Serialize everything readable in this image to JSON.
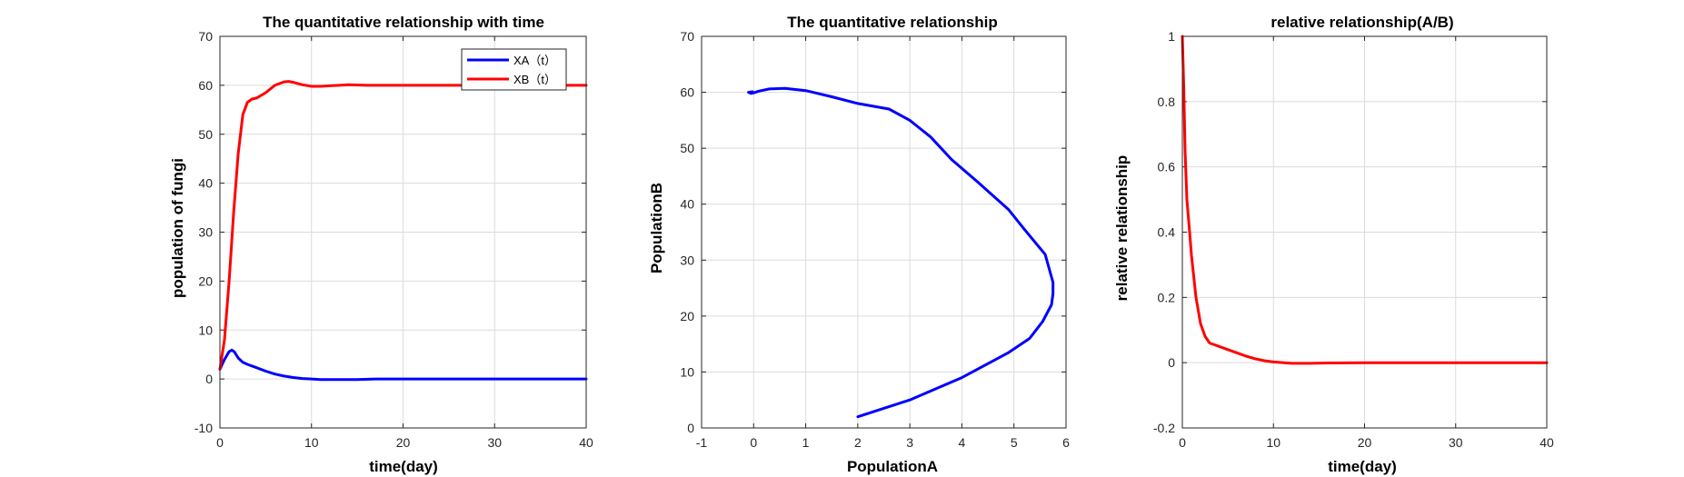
{
  "chart_data": [
    {
      "type": "line",
      "title": "The quantitative relationship with time",
      "xlabel": "time(day)",
      "ylabel": "population of fungi",
      "xlim": [
        0,
        40
      ],
      "ylim": [
        -10,
        70
      ],
      "xticks": [
        0,
        10,
        20,
        30,
        40
      ],
      "yticks": [
        -10,
        0,
        10,
        20,
        30,
        40,
        50,
        60,
        70
      ],
      "grid": true,
      "legend": "top-right",
      "series": [
        {
          "name": "XA（t）",
          "color": "#0000ff",
          "x": [
            0,
            0.5,
            1,
            1.3,
            1.6,
            2,
            2.5,
            3,
            4,
            5,
            6,
            7,
            8,
            9,
            10,
            11,
            12,
            13,
            14,
            15,
            17,
            20,
            25,
            30,
            35,
            40
          ],
          "y": [
            2,
            4,
            5.6,
            5.9,
            5.5,
            4.3,
            3.4,
            3.0,
            2.3,
            1.6,
            1.0,
            0.6,
            0.3,
            0.1,
            0.0,
            -0.1,
            -0.1,
            -0.1,
            -0.1,
            -0.1,
            0,
            0,
            0,
            0,
            0,
            0
          ]
        },
        {
          "name": "XB（t）",
          "color": "#ff0000",
          "x": [
            0,
            0.5,
            1,
            1.5,
            2,
            2.5,
            3,
            3.5,
            4,
            5,
            6,
            7,
            7.5,
            8,
            9,
            10,
            11,
            12,
            13,
            14,
            16,
            20,
            25,
            30,
            35,
            40
          ],
          "y": [
            2,
            8,
            20,
            34,
            46,
            54,
            56.5,
            57.2,
            57.4,
            58.5,
            60,
            60.7,
            60.8,
            60.6,
            60.1,
            59.8,
            59.8,
            59.9,
            60.0,
            60.1,
            60.0,
            60,
            60,
            60,
            60,
            60
          ]
        }
      ]
    },
    {
      "type": "line",
      "title": "The quantitative relationship",
      "xlabel": "PopulationA",
      "ylabel": "PopulationB",
      "xlim": [
        -1,
        6
      ],
      "ylim": [
        0,
        70
      ],
      "xticks": [
        -1,
        0,
        1,
        2,
        3,
        4,
        5,
        6
      ],
      "yticks": [
        0,
        10,
        20,
        30,
        40,
        50,
        60,
        70
      ],
      "grid": true,
      "series": [
        {
          "color": "#0000ff",
          "x": [
            2,
            2.5,
            3,
            3.5,
            4,
            4.4,
            4.9,
            5.3,
            5.55,
            5.72,
            5.75,
            5.75,
            5.6,
            5.2,
            4.9,
            4.3,
            3.8,
            3.4,
            3.0,
            2.6,
            2.0,
            1.5,
            1.0,
            0.6,
            0.3,
            0.1,
            0.0,
            -0.05,
            -0.1,
            -0.02
          ],
          "y": [
            2,
            3.5,
            5,
            7,
            9,
            11,
            13.5,
            16,
            19,
            22,
            24,
            26,
            31,
            35.5,
            39,
            44,
            48,
            52,
            55,
            57,
            58,
            59.2,
            60.3,
            60.7,
            60.6,
            60.2,
            59.9,
            59.8,
            60.0,
            60.1
          ]
        }
      ]
    },
    {
      "type": "line",
      "title": "relative relationship(A/B)",
      "xlabel": "time(day)",
      "ylabel": "relative relationship",
      "xlim": [
        0,
        40
      ],
      "ylim": [
        -0.2,
        1
      ],
      "xticks": [
        0,
        10,
        20,
        30,
        40
      ],
      "yticks": [
        -0.2,
        0,
        0.2,
        0.4,
        0.6,
        0.8,
        1
      ],
      "grid": true,
      "series": [
        {
          "color": "#ff0000",
          "x": [
            0,
            0.15,
            0.3,
            0.5,
            0.8,
            1,
            1.5,
            2,
            2.5,
            3,
            3.5,
            4,
            5,
            6,
            7,
            8,
            9,
            10,
            12,
            14,
            16,
            20,
            25,
            30,
            35,
            40
          ],
          "y": [
            1,
            0.85,
            0.65,
            0.5,
            0.4,
            0.33,
            0.2,
            0.12,
            0.08,
            0.06,
            0.055,
            0.05,
            0.04,
            0.03,
            0.02,
            0.012,
            0.006,
            0.002,
            -0.002,
            -0.002,
            -0.001,
            0,
            0,
            0,
            0,
            0
          ]
        }
      ]
    }
  ]
}
